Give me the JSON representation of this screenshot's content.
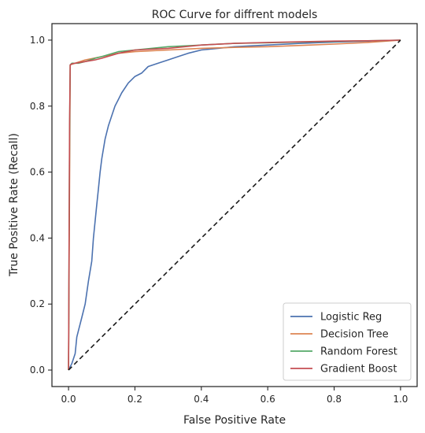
{
  "chart_data": {
    "type": "line",
    "title": "ROC Curve for diffrent models",
    "xlabel": "False Positive Rate",
    "ylabel": "True Positive Rate (Recall)",
    "xlim": [
      -0.05,
      1.05
    ],
    "ylim": [
      -0.05,
      1.05
    ],
    "xticks": [
      0.0,
      0.2,
      0.4,
      0.6,
      0.8,
      1.0
    ],
    "yticks": [
      0.0,
      0.2,
      0.4,
      0.6,
      0.8,
      1.0
    ],
    "xtick_labels": [
      "0.0",
      "0.2",
      "0.4",
      "0.6",
      "0.8",
      "1.0"
    ],
    "ytick_labels": [
      "0.0",
      "0.2",
      "0.4",
      "0.6",
      "0.8",
      "1.0"
    ],
    "grid": false,
    "legend_position": "lower-right",
    "series": [
      {
        "name": "Logistic Reg",
        "color": "#4c72b0",
        "x": [
          0.0,
          0.01,
          0.02,
          0.025,
          0.03,
          0.04,
          0.05,
          0.06,
          0.07,
          0.075,
          0.08,
          0.085,
          0.09,
          0.095,
          0.1,
          0.105,
          0.11,
          0.12,
          0.13,
          0.14,
          0.15,
          0.16,
          0.18,
          0.2,
          0.22,
          0.24,
          0.27,
          0.3,
          0.33,
          0.36,
          0.4,
          0.45,
          0.5,
          0.6,
          0.7,
          0.8,
          0.9,
          1.0
        ],
        "y": [
          0.0,
          0.02,
          0.05,
          0.1,
          0.12,
          0.16,
          0.2,
          0.27,
          0.33,
          0.4,
          0.45,
          0.5,
          0.55,
          0.6,
          0.64,
          0.67,
          0.7,
          0.74,
          0.77,
          0.8,
          0.82,
          0.84,
          0.87,
          0.89,
          0.9,
          0.92,
          0.93,
          0.94,
          0.95,
          0.96,
          0.97,
          0.975,
          0.98,
          0.985,
          0.99,
          0.994,
          0.997,
          1.0
        ]
      },
      {
        "name": "Decision Tree",
        "color": "#dd8452",
        "x": [
          0.0,
          0.005,
          0.02,
          0.05,
          0.1,
          0.15,
          0.2,
          0.3,
          0.4,
          0.5,
          0.6,
          0.7,
          0.8,
          0.9,
          1.0
        ],
        "y": [
          0.0,
          0.925,
          0.93,
          0.94,
          0.95,
          0.96,
          0.965,
          0.97,
          0.975,
          0.978,
          0.98,
          0.984,
          0.988,
          0.993,
          1.0
        ]
      },
      {
        "name": "Random Forest",
        "color": "#55a868",
        "x": [
          0.0,
          0.003,
          0.005,
          0.01,
          0.03,
          0.05,
          0.08,
          0.1,
          0.15,
          0.2,
          0.3,
          0.4,
          0.5,
          0.6,
          0.7,
          0.8,
          0.9,
          1.0
        ],
        "y": [
          0.0,
          0.7,
          0.925,
          0.93,
          0.93,
          0.935,
          0.945,
          0.95,
          0.965,
          0.97,
          0.98,
          0.985,
          0.99,
          0.992,
          0.994,
          0.996,
          0.998,
          1.0
        ]
      },
      {
        "name": "Gradient Boost",
        "color": "#c44e52",
        "x": [
          0.0,
          0.003,
          0.005,
          0.01,
          0.02,
          0.05,
          0.08,
          0.1,
          0.15,
          0.2,
          0.3,
          0.4,
          0.5,
          0.6,
          0.7,
          0.8,
          0.9,
          1.0
        ],
        "y": [
          0.0,
          0.75,
          0.925,
          0.928,
          0.93,
          0.935,
          0.94,
          0.945,
          0.96,
          0.97,
          0.975,
          0.985,
          0.99,
          0.993,
          0.995,
          0.997,
          0.998,
          1.0
        ]
      },
      {
        "color": "#1a1a1a",
        "style": "dashed",
        "x": [
          0.0,
          1.0
        ],
        "y": [
          0.0,
          1.0
        ]
      }
    ]
  }
}
